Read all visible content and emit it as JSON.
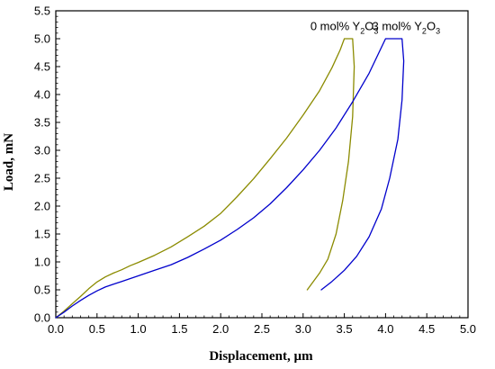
{
  "chart_data": {
    "type": "line",
    "title": "",
    "xlabel": "Displacement, µm",
    "ylabel": "Load, mN",
    "xlim": [
      0.0,
      5.0
    ],
    "ylim": [
      0.0,
      5.5
    ],
    "x_ticks": [
      "0.0",
      "0.5",
      "1.0",
      "1.5",
      "2.0",
      "2.5",
      "3.0",
      "3.5",
      "4.0",
      "4.5",
      "5.0"
    ],
    "y_ticks": [
      "0.0",
      "0.5",
      "1.0",
      "1.5",
      "2.0",
      "2.5",
      "3.0",
      "3.5",
      "4.0",
      "4.5",
      "5.0",
      "5.5"
    ],
    "grid": false,
    "legend": "none",
    "series": [
      {
        "name": "0 mol% Y2O3",
        "color": "#8b8b00",
        "x": [
          0.0,
          0.1,
          0.2,
          0.3,
          0.4,
          0.5,
          0.6,
          0.7,
          0.8,
          0.9,
          1.0,
          1.2,
          1.4,
          1.6,
          1.8,
          2.0,
          2.2,
          2.4,
          2.6,
          2.8,
          3.0,
          3.2,
          3.35,
          3.45,
          3.5,
          3.6,
          3.62,
          3.6,
          3.55,
          3.48,
          3.4,
          3.3,
          3.2,
          3.1,
          3.05
        ],
        "y": [
          0.0,
          0.12,
          0.25,
          0.38,
          0.52,
          0.64,
          0.73,
          0.8,
          0.86,
          0.93,
          0.99,
          1.12,
          1.27,
          1.45,
          1.64,
          1.87,
          2.17,
          2.49,
          2.85,
          3.22,
          3.63,
          4.07,
          4.48,
          4.8,
          5.0,
          5.0,
          4.5,
          3.6,
          2.8,
          2.1,
          1.5,
          1.05,
          0.8,
          0.6,
          0.5
        ]
      },
      {
        "name": "3 mol% Y2O3",
        "color": "#0000cc",
        "x": [
          0.0,
          0.1,
          0.2,
          0.3,
          0.4,
          0.5,
          0.6,
          0.7,
          0.8,
          1.0,
          1.2,
          1.4,
          1.6,
          1.8,
          2.0,
          2.2,
          2.4,
          2.6,
          2.8,
          3.0,
          3.2,
          3.4,
          3.6,
          3.8,
          4.0,
          4.2,
          4.22,
          4.2,
          4.15,
          4.05,
          3.95,
          3.8,
          3.65,
          3.5,
          3.35,
          3.22
        ],
        "y": [
          0.0,
          0.1,
          0.21,
          0.31,
          0.4,
          0.48,
          0.55,
          0.6,
          0.65,
          0.75,
          0.85,
          0.95,
          1.08,
          1.23,
          1.39,
          1.58,
          1.79,
          2.04,
          2.33,
          2.65,
          3.0,
          3.4,
          3.87,
          4.38,
          5.0,
          5.0,
          4.6,
          3.9,
          3.2,
          2.5,
          1.95,
          1.45,
          1.1,
          0.85,
          0.65,
          0.5
        ]
      }
    ],
    "annotations": [
      {
        "label": "0 mol% Y",
        "subscript": "2",
        "label_mid": "O",
        "subscript2": "3",
        "anchor_x": 3.5,
        "anchor_y": 5.15
      },
      {
        "label": "3 mol% Y",
        "subscript": "2",
        "label_mid": "O",
        "subscript2": "3",
        "anchor_x": 4.25,
        "anchor_y": 5.15
      }
    ]
  }
}
